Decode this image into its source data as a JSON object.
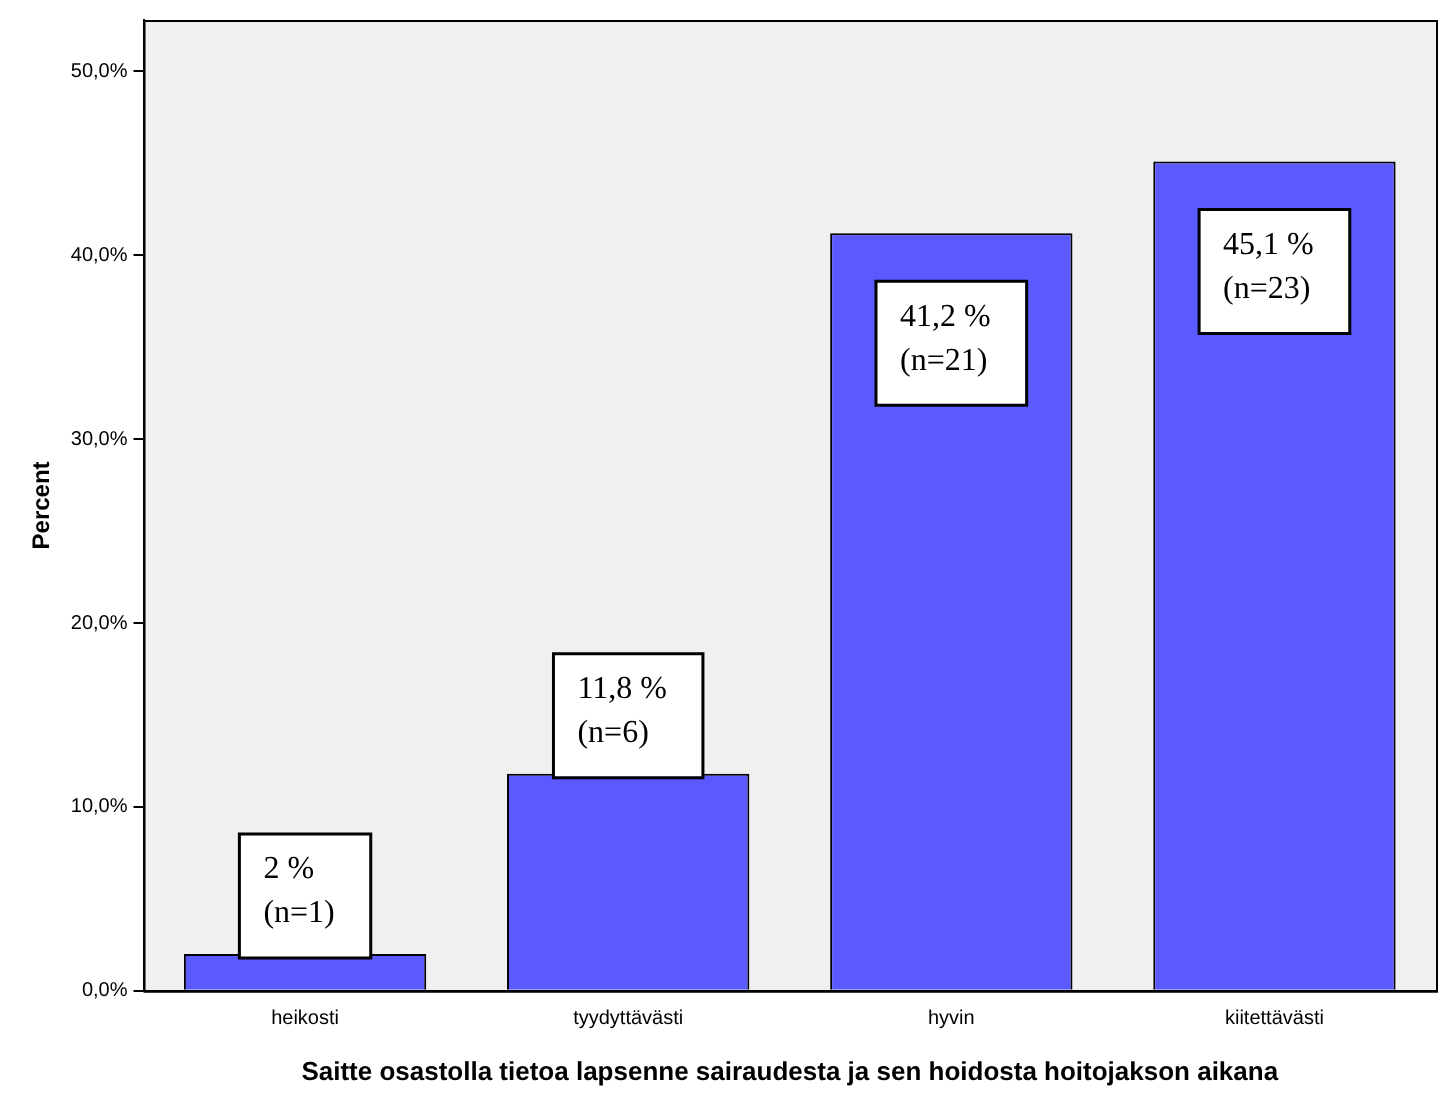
{
  "chart_data": {
    "type": "bar",
    "xlabel": "Saitte osastolla tietoa lapsenne sairaudesta ja sen hoidosta hoitojakson aikana",
    "ylabel": "Percent",
    "categories": [
      "heikosti",
      "tyydyttävästi",
      "hyvin",
      "kiitettävästi"
    ],
    "values": [
      2,
      11.8,
      41.2,
      45.1
    ],
    "color": "#5a5aff",
    "value_labels": [
      "2 %\n(n=1)",
      "11,8 %\n(n=6)",
      "41,2 %\n(n=21)",
      "45,1 %\n(n=23)"
    ],
    "ylim": [
      0,
      52.8
    ],
    "yticks": [
      {
        "value": 0,
        "label": "0,0%"
      },
      {
        "value": 10,
        "label": "10,0%"
      },
      {
        "value": 20,
        "label": "20,0%"
      },
      {
        "value": 30,
        "label": "30,0%"
      },
      {
        "value": 40,
        "label": "40,0%"
      },
      {
        "value": 50,
        "label": "50,0%"
      }
    ],
    "grid": false,
    "legend": false
  }
}
